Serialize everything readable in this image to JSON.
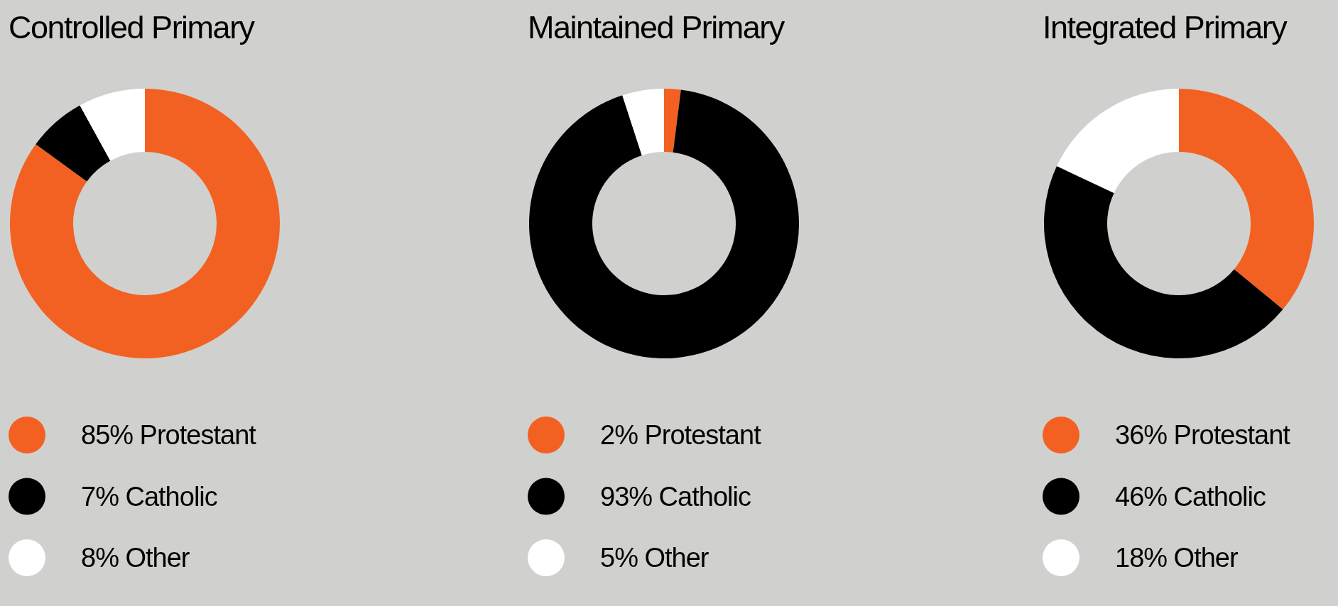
{
  "chart_data": [
    {
      "type": "donut",
      "title": "Controlled Primary",
      "categories": [
        "Protestant",
        "Catholic",
        "Other"
      ],
      "values": [
        85,
        7,
        8
      ],
      "value_labels": [
        "85%",
        "7%",
        "8%"
      ],
      "colors": [
        "#f26122",
        "#000000",
        "#ffffff"
      ],
      "legend": "bottom"
    },
    {
      "type": "donut",
      "title": "Maintained Primary",
      "categories": [
        "Protestant",
        "Catholic",
        "Other"
      ],
      "values": [
        2,
        93,
        5
      ],
      "value_labels": [
        "2%",
        "93%",
        "5%"
      ],
      "colors": [
        "#f26122",
        "#000000",
        "#ffffff"
      ],
      "legend": "bottom"
    },
    {
      "type": "donut",
      "title": "Integrated Primary",
      "categories": [
        "Protestant",
        "Catholic",
        "Other"
      ],
      "values": [
        36,
        46,
        18
      ],
      "value_labels": [
        "36%",
        "46%",
        "18%"
      ],
      "colors": [
        "#f26122",
        "#000000",
        "#ffffff"
      ],
      "legend": "bottom"
    }
  ]
}
